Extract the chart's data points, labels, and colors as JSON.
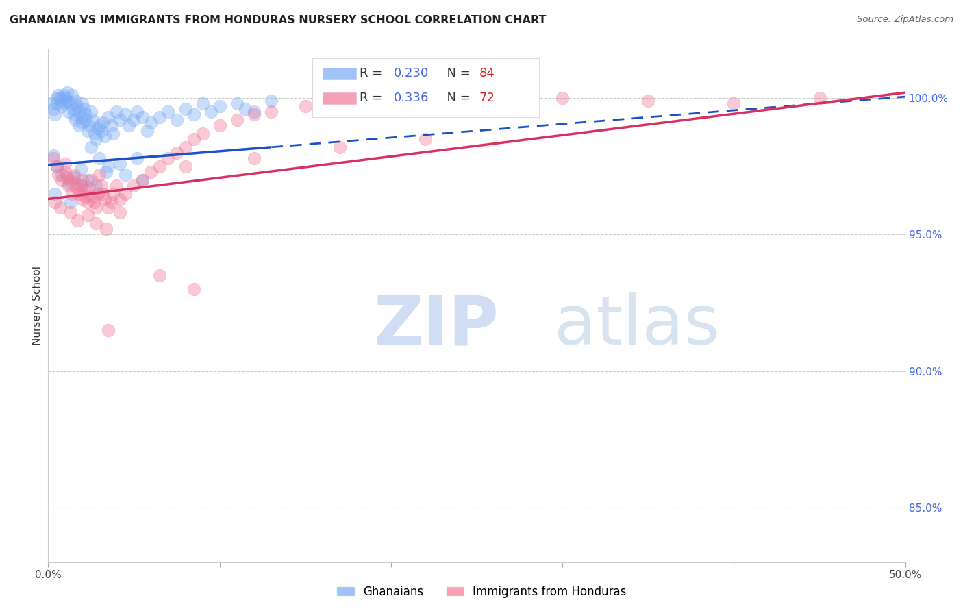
{
  "title": "GHANAIAN VS IMMIGRANTS FROM HONDURAS NURSERY SCHOOL CORRELATION CHART",
  "source": "Source: ZipAtlas.com",
  "ylabel": "Nursery School",
  "yticks": [
    85.0,
    90.0,
    95.0,
    100.0
  ],
  "ytick_labels": [
    "85.0%",
    "90.0%",
    "95.0%",
    "100.0%"
  ],
  "xmin": 0.0,
  "xmax": 50.0,
  "ymin": 83.0,
  "ymax": 101.8,
  "ghanaian_color": "#7aaaf5",
  "honduras_color": "#f07898",
  "trendline_blue_color": "#1a50c8",
  "trendline_pink_color": "#d93060",
  "blue_trendline_x0": 0.0,
  "blue_trendline_y0": 97.55,
  "blue_trendline_x1": 50.0,
  "blue_trendline_y1": 100.05,
  "blue_solid_end_x": 13.0,
  "pink_trendline_x0": 0.0,
  "pink_trendline_y0": 96.3,
  "pink_trendline_x1": 50.0,
  "pink_trendline_y1": 100.2,
  "ghanaians_x": [
    0.2,
    0.3,
    0.4,
    0.5,
    0.5,
    0.6,
    0.7,
    0.8,
    0.8,
    0.9,
    1.0,
    1.0,
    1.1,
    1.1,
    1.2,
    1.3,
    1.4,
    1.5,
    1.5,
    1.6,
    1.6,
    1.7,
    1.8,
    1.8,
    1.9,
    2.0,
    2.0,
    2.1,
    2.2,
    2.2,
    2.3,
    2.4,
    2.5,
    2.6,
    2.7,
    2.8,
    2.9,
    3.0,
    3.1,
    3.2,
    3.3,
    3.5,
    3.7,
    3.8,
    4.0,
    4.2,
    4.5,
    4.7,
    5.0,
    5.2,
    5.5,
    5.8,
    6.0,
    6.5,
    7.0,
    7.5,
    8.0,
    8.5,
    9.0,
    9.5,
    10.0,
    11.0,
    11.5,
    12.0,
    13.0,
    2.5,
    3.0,
    3.5,
    4.5,
    5.5,
    0.3,
    0.5,
    0.8,
    1.2,
    1.5,
    1.9,
    2.3,
    2.8,
    3.4,
    4.2,
    5.2,
    0.4,
    1.3,
    2.0
  ],
  "ghanaians_y": [
    99.8,
    99.6,
    99.4,
    100.0,
    99.8,
    100.1,
    100.0,
    99.9,
    99.7,
    100.1,
    100.0,
    99.8,
    100.2,
    99.9,
    99.5,
    99.8,
    100.1,
    99.6,
    99.4,
    99.9,
    99.2,
    99.7,
    99.5,
    99.0,
    99.3,
    99.8,
    99.1,
    99.6,
    99.4,
    99.2,
    98.8,
    99.0,
    99.5,
    99.2,
    98.7,
    98.5,
    98.9,
    99.0,
    98.8,
    99.1,
    98.6,
    99.3,
    99.0,
    98.7,
    99.5,
    99.2,
    99.4,
    99.0,
    99.2,
    99.5,
    99.3,
    98.8,
    99.1,
    99.3,
    99.5,
    99.2,
    99.6,
    99.4,
    99.8,
    99.5,
    99.7,
    99.8,
    99.6,
    99.5,
    99.9,
    98.2,
    97.8,
    97.5,
    97.2,
    97.0,
    97.9,
    97.5,
    97.2,
    96.9,
    97.1,
    97.4,
    97.0,
    96.8,
    97.3,
    97.6,
    97.8,
    96.5,
    96.2,
    96.8
  ],
  "honduras_x": [
    0.3,
    0.5,
    0.6,
    0.8,
    1.0,
    1.0,
    1.1,
    1.2,
    1.3,
    1.4,
    1.5,
    1.6,
    1.7,
    1.8,
    1.9,
    2.0,
    2.0,
    2.1,
    2.2,
    2.3,
    2.4,
    2.5,
    2.6,
    2.7,
    2.8,
    2.9,
    3.0,
    3.1,
    3.2,
    3.3,
    3.5,
    3.7,
    3.8,
    4.0,
    4.2,
    4.5,
    5.0,
    5.5,
    6.0,
    6.5,
    7.0,
    7.5,
    8.0,
    8.5,
    9.0,
    10.0,
    11.0,
    12.0,
    13.0,
    15.0,
    16.0,
    20.0,
    25.0,
    30.0,
    35.0,
    40.0,
    45.0,
    0.4,
    0.7,
    1.3,
    1.7,
    2.3,
    2.8,
    3.4,
    4.2,
    8.0,
    12.0,
    17.0,
    22.0,
    6.5,
    8.5,
    3.5
  ],
  "honduras_y": [
    97.8,
    97.5,
    97.2,
    97.0,
    97.3,
    97.6,
    97.1,
    96.8,
    97.0,
    96.5,
    97.2,
    96.9,
    96.7,
    96.5,
    96.8,
    97.0,
    96.3,
    96.6,
    96.4,
    96.2,
    96.7,
    97.0,
    96.4,
    96.2,
    96.0,
    96.5,
    97.2,
    96.8,
    96.5,
    96.3,
    96.0,
    96.2,
    96.5,
    96.8,
    96.3,
    96.5,
    96.8,
    97.0,
    97.3,
    97.5,
    97.8,
    98.0,
    98.2,
    98.5,
    98.7,
    99.0,
    99.2,
    99.4,
    99.5,
    99.7,
    99.8,
    100.0,
    100.1,
    100.0,
    99.9,
    99.8,
    100.0,
    96.2,
    96.0,
    95.8,
    95.5,
    95.7,
    95.4,
    95.2,
    95.8,
    97.5,
    97.8,
    98.2,
    98.5,
    93.5,
    93.0,
    91.5
  ]
}
